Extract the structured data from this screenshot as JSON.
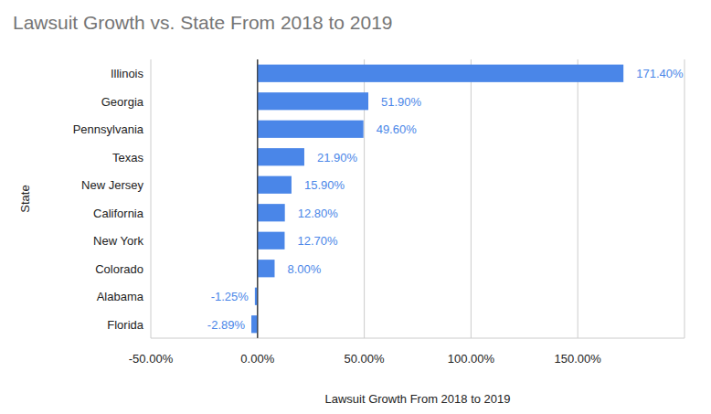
{
  "chart_data": {
    "type": "bar",
    "title": "Lawsuit Growth vs. State From 2018 to 2019",
    "x_label": "Lawsuit Growth From 2018 to 2019",
    "y_label": "State",
    "orientation": "horizontal",
    "categories": [
      "Illinois",
      "Georgia",
      "Pennsylvania",
      "Texas",
      "New Jersey",
      "California",
      "New York",
      "Colorado",
      "Alabama",
      "Florida"
    ],
    "values": [
      171.4,
      51.9,
      49.6,
      21.9,
      15.9,
      12.8,
      12.7,
      8.0,
      -1.25,
      -2.89
    ],
    "value_labels": [
      "171.40%",
      "51.90%",
      "49.60%",
      "21.90%",
      "15.90%",
      "12.80%",
      "12.70%",
      "8.00%",
      "-1.25%",
      "-2.89%"
    ],
    "color": "#4a86e8",
    "xlim": [
      -50,
      200
    ],
    "xticks": [
      {
        "value": -50,
        "label": "-50.00%"
      },
      {
        "value": 0,
        "label": "0.00%"
      },
      {
        "value": 50,
        "label": "50.00%"
      },
      {
        "value": 100,
        "label": "100.00%"
      },
      {
        "value": 150,
        "label": "150.00%"
      }
    ],
    "grid": true,
    "data_labels": true
  }
}
